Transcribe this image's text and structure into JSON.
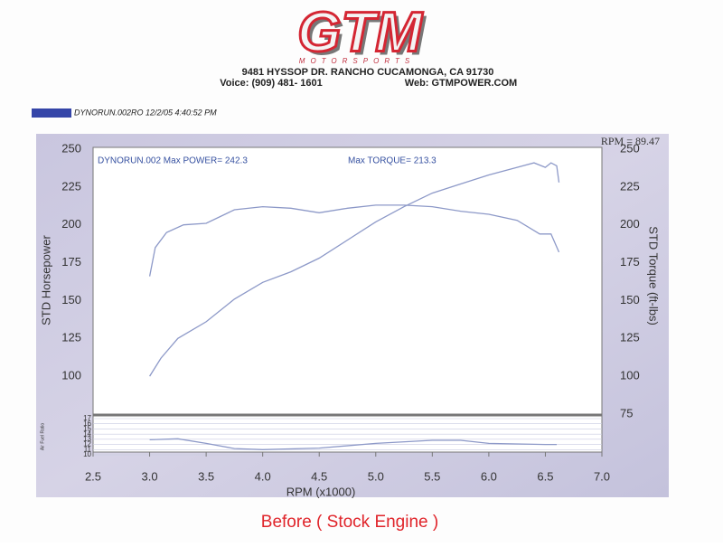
{
  "header": {
    "logo": "GTM",
    "sub": "MOTORSPORTS",
    "address": "9481 HYSSOP DR. RANCHO CUCAMONGA, CA 91730",
    "voice": "Voice: (909) 481- 1601",
    "web": "Web: GTMPOWER.COM"
  },
  "run_label": "DYNORUN.002RO  12/2/05 4:40:52 PM",
  "caption": "Before ( Stock Engine )",
  "chart_data": [
    {
      "type": "line",
      "annotations": [
        "DYNORUN.002  Max POWER= 242.3",
        "Max TORQUE= 213.3",
        "RPM = 89.47"
      ],
      "ylabel": "STD Horsepower",
      "y2label": "STD Torque (ft-lbs)",
      "xlim": [
        2.5,
        7.0
      ],
      "ylim": [
        75,
        250
      ],
      "yticks": [
        100,
        125,
        150,
        175,
        200,
        225,
        250
      ],
      "y2lim": [
        75,
        250
      ],
      "y2ticks": [
        75,
        100,
        125,
        150,
        175,
        200,
        225,
        250
      ],
      "series": [
        {
          "color": "#8d99c8",
          "x": [
            3.0,
            3.1,
            3.25,
            3.5,
            3.75,
            4.0,
            4.25,
            4.5,
            4.75,
            5.0,
            5.25,
            5.5,
            5.75,
            6.0,
            6.25,
            6.4,
            6.5,
            6.55,
            6.6,
            6.62
          ],
          "values": [
            100,
            112,
            125,
            136,
            151,
            162,
            169,
            178,
            190,
            202,
            212,
            221,
            227,
            233,
            238,
            241,
            238,
            241,
            239,
            228
          ]
        },
        {
          "color": "#8d99c8",
          "axis": "y2",
          "x": [
            3.0,
            3.05,
            3.15,
            3.3,
            3.5,
            3.75,
            4.0,
            4.25,
            4.5,
            4.75,
            5.0,
            5.25,
            5.5,
            5.75,
            6.0,
            6.25,
            6.45,
            6.55,
            6.62
          ],
          "values": [
            166,
            185,
            195,
            200,
            201,
            210,
            212,
            211,
            208,
            211,
            213,
            213,
            212,
            209,
            207,
            203,
            194,
            194,
            182
          ]
        }
      ]
    },
    {
      "type": "line",
      "ylabel": "Air Fuel Ratio",
      "xlabel": "RPM (x1000)",
      "xlim": [
        2.5,
        7.0
      ],
      "xticks": [
        2.5,
        {
          "value": 3,
          "label": "3.0"
        },
        3.5,
        {
          "value": 4,
          "label": "4.0"
        },
        4.5,
        {
          "value": 5,
          "label": "5.0"
        },
        5.5,
        {
          "value": 6,
          "label": "6.0"
        },
        6.5,
        {
          "value": 7,
          "label": "7.0"
        }
      ],
      "ylim": [
        10,
        17
      ],
      "yticks": [
        10,
        11,
        12,
        13,
        14,
        15,
        16,
        17
      ],
      "grid": true,
      "series": [
        {
          "color": "#8d99c8",
          "x": [
            3.0,
            3.25,
            3.5,
            3.75,
            4.0,
            4.5,
            5.0,
            5.5,
            5.75,
            6.0,
            6.5,
            6.6
          ],
          "values": [
            12.9,
            13.1,
            12.2,
            11.2,
            11.0,
            11.3,
            12.2,
            12.8,
            12.8,
            12.2,
            12.0,
            12.0
          ]
        }
      ]
    }
  ]
}
